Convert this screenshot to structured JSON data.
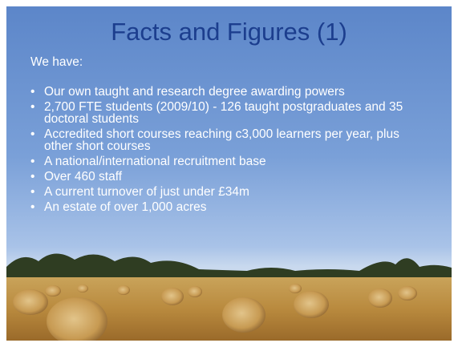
{
  "slide": {
    "title": "Facts and Figures (1)",
    "intro": "We have:",
    "bullets": [
      "Our own taught and research degree awarding powers",
      "2,700 FTE students (2009/10) - 126 taught postgraduates and 35 doctoral students",
      "Accredited short courses reaching c3,000 learners per year, plus other short courses",
      "A national/international recruitment base",
      "Over 460 staff",
      "A current turnover of  just under £34m",
      "An estate of over 1,000 acres"
    ]
  }
}
